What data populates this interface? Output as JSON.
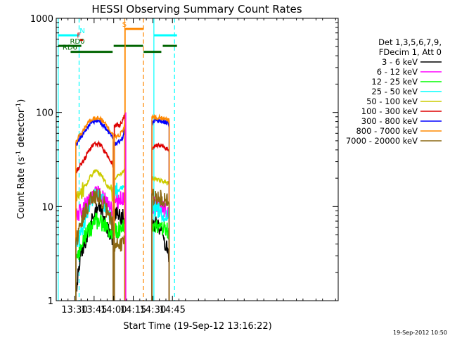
{
  "chart_data": {
    "type": "line",
    "title": "HESSI Observing Summary Count Rates",
    "xlabel": "Start Time (19-Sep-12 13:16:22)",
    "ylabel": "Count Rate (s⁻¹ detector⁻¹)",
    "ylabel_parts": [
      "Count Rate (s",
      "-1",
      " detector",
      "-1",
      ")"
    ],
    "footer": "19-Sep-2012 10:50",
    "xlim_min": [
      796,
      1012
    ],
    "ylim": [
      1,
      1000
    ],
    "y_scale": "log",
    "x_ticks": [
      {
        "min": 810,
        "label": "13:30"
      },
      {
        "min": 825,
        "label": "13:45"
      },
      {
        "min": 840,
        "label": "14:00"
      },
      {
        "min": 855,
        "label": "14:15"
      },
      {
        "min": 870,
        "label": "14:30"
      },
      {
        "min": 885,
        "label": "14:45"
      }
    ],
    "y_ticks": [
      {
        "value": 1,
        "label": "1"
      },
      {
        "value": 10,
        "label": "10"
      },
      {
        "value": 100,
        "label": "100"
      },
      {
        "value": 1000,
        "label": "1000"
      }
    ],
    "legend": {
      "header": [
        "Det 1,3,5,6,7,9,",
        "FDecim 1, Att 0"
      ],
      "position": "right"
    },
    "series": [
      {
        "name": "3 - 6 keV",
        "color": "#000000",
        "segments": [
          {
            "x": [
              811,
              814,
              817,
              820,
              823,
              826,
              829,
              832,
              835,
              838,
              839.5
            ],
            "y": [
              1.2,
              2.8,
              3.5,
              5.0,
              7.0,
              8.5,
              10.5,
              8.0,
              6.0,
              5.0,
              4.5
            ]
          },
          {
            "x": [
              840.5,
              843,
              845,
              847,
              848.5
            ],
            "y": [
              8.5,
              8.5,
              7.8,
              7.8,
              7.8
            ]
          },
          {
            "x": [
              869.3,
              872,
              875,
              878,
              880,
              882.5
            ],
            "y": [
              6.0,
              6.5,
              6.0,
              5.0,
              3.8,
              3.0
            ]
          }
        ]
      },
      {
        "name": "6 - 12 keV",
        "color": "#ff00ff",
        "segments": [
          {
            "x": [
              811,
              814,
              817,
              820,
              823,
              826,
              829,
              832,
              835,
              838,
              839.5
            ],
            "y": [
              8.0,
              8.8,
              9.8,
              11.0,
              12.5,
              13.5,
              13.5,
              12.5,
              11.0,
              9.5,
              8.5
            ]
          },
          {
            "x": [
              840.5,
              843,
              845,
              847,
              848.5
            ],
            "y": [
              11.0,
              11.5,
              12.0,
              12.5,
              13.0
            ]
          },
          {
            "x": [
              869.3,
              872,
              875,
              878,
              880,
              882.5
            ],
            "y": [
              10.0,
              10.5,
              10.0,
              9.5,
              9.0,
              9.0
            ]
          }
        ]
      },
      {
        "name": "12 - 25 keV",
        "color": "#00ff00",
        "segments": [
          {
            "x": [
              811,
              814,
              817,
              820,
              823,
              826,
              829,
              832,
              835,
              838,
              839.5
            ],
            "y": [
              2.5,
              3.5,
              4.5,
              5.5,
              6.0,
              7.0,
              7.0,
              6.5,
              6.0,
              5.5,
              5.0
            ]
          },
          {
            "x": [
              840.5,
              843,
              845,
              847,
              848.5
            ],
            "y": [
              5.5,
              5.5,
              6.0,
              6.0,
              6.0
            ]
          },
          {
            "x": [
              869.3,
              872,
              875,
              878,
              880,
              882.5
            ],
            "y": [
              6.5,
              6.5,
              6.0,
              6.0,
              5.5,
              5.5
            ]
          }
        ]
      },
      {
        "name": "25 - 50 keV",
        "color": "#00ffff",
        "segments": [
          {
            "x": [
              811,
              814,
              817,
              820,
              823,
              826,
              829,
              832,
              835,
              838,
              839.5
            ],
            "y": [
              3.5,
              4.5,
              6.5,
              9.0,
              11.5,
              13.5,
              13.0,
              11.0,
              9.0,
              7.5,
              6.5
            ]
          },
          {
            "x": [
              840.5,
              843,
              845,
              847,
              848.5
            ],
            "y": [
              14.5,
              15.0,
              15.5,
              16.0,
              17.0
            ]
          },
          {
            "x": [
              869.3,
              872,
              875,
              878,
              880,
              882.5
            ],
            "y": [
              10.0,
              9.5,
              9.0,
              8.5,
              8.0,
              8.0
            ]
          }
        ]
      },
      {
        "name": "50 - 100 keV",
        "color": "#cccc00",
        "segments": [
          {
            "x": [
              811,
              814,
              817,
              820,
              823,
              826,
              829,
              832,
              835,
              838,
              839.5
            ],
            "y": [
              12.0,
              13.5,
              15.5,
              18.5,
              21.5,
              24.0,
              23.0,
              20.0,
              17.0,
              14.5,
              13.0
            ]
          },
          {
            "x": [
              840.5,
              843,
              845,
              847,
              848.5
            ],
            "y": [
              20.0,
              21.0,
              22.0,
              23.0,
              24.0
            ]
          },
          {
            "x": [
              869.3,
              872,
              875,
              878,
              880,
              882.5
            ],
            "y": [
              20.0,
              19.5,
              19.0,
              18.5,
              18.0,
              17.5
            ]
          }
        ]
      },
      {
        "name": "100 - 300 keV",
        "color": "#dd0000",
        "segments": [
          {
            "x": [
              811,
              814,
              817,
              820,
              823,
              826,
              829,
              832,
              835,
              838,
              839.5
            ],
            "y": [
              23.0,
              27.0,
              31.0,
              37.0,
              43.0,
              47.0,
              46.0,
              41.0,
              35.0,
              30.0,
              28.0
            ]
          },
          {
            "x": [
              840.5,
              843,
              845,
              847,
              848.5
            ],
            "y": [
              72.0,
              73.0,
              74.0,
              82.0,
              97.0
            ]
          },
          {
            "x": [
              869.3,
              872,
              875,
              878,
              880,
              882.5
            ],
            "y": [
              42.0,
              44.0,
              45.0,
              44.0,
              42.0,
              40.0
            ]
          }
        ]
      },
      {
        "name": "300 - 800 keV",
        "color": "#0000ff",
        "segments": [
          {
            "x": [
              811,
              814,
              817,
              820,
              823,
              826,
              829,
              832,
              835,
              838,
              839.5
            ],
            "y": [
              45.0,
              52.0,
              61.0,
              71.0,
              79.0,
              82.0,
              80.0,
              73.0,
              65.0,
              58.0,
              55.0
            ]
          },
          {
            "x": [
              840.5,
              843,
              845,
              847,
              848.5
            ],
            "y": [
              47.0,
              48.0,
              50.0,
              55.0,
              70.0
            ]
          },
          {
            "x": [
              869.3,
              872,
              875,
              878,
              880,
              882.5
            ],
            "y": [
              80.0,
              82.0,
              81.0,
              80.0,
              78.0,
              75.0
            ]
          }
        ]
      },
      {
        "name": "800 - 7000 keV",
        "color": "#ff8800",
        "segments": [
          {
            "x": [
              811,
              814,
              817,
              820,
              823,
              826,
              829,
              832,
              835,
              838,
              839.5
            ],
            "y": [
              49.0,
              56.0,
              65.0,
              75.0,
              84.0,
              88.0,
              87.0,
              80.0,
              71.0,
              63.0,
              60.0
            ]
          },
          {
            "x": [
              840.5,
              843,
              845,
              847,
              848.5
            ],
            "y": [
              55.0,
              57.0,
              59.0,
              63.0,
              80.0
            ]
          },
          {
            "x": [
              869.3,
              872,
              875,
              878,
              880,
              882.5
            ],
            "y": [
              87.0,
              89.0,
              88.0,
              87.0,
              85.0,
              82.0
            ]
          }
        ]
      },
      {
        "name": "7000 - 20000 keV",
        "color": "#8b6914",
        "segments": [
          {
            "x": [
              811,
              814,
              817,
              820,
              823,
              826,
              829,
              832,
              835,
              838,
              839.5
            ],
            "y": [
              4.0,
              6.0,
              8.0,
              10.0,
              12.0,
              13.0,
              12.5,
              11.0,
              9.0,
              7.0,
              6.0
            ]
          },
          {
            "x": [
              840.5,
              843,
              845,
              847,
              848.5
            ],
            "y": [
              4.0,
              4.0,
              4.0,
              4.0,
              4.2
            ]
          },
          {
            "x": [
              869.3,
              872,
              875,
              878,
              880,
              882.5
            ],
            "y": [
              13.0,
              13.0,
              12.5,
              12.0,
              11.5,
              11.0
            ]
          }
        ]
      }
    ],
    "spikes": [
      {
        "color": "#ff8800",
        "x": 848.8,
        "y": [
          1,
          780
        ]
      },
      {
        "color": "#ff00ff",
        "x": 849.3,
        "y": [
          1,
          100
        ]
      }
    ],
    "vlines": [
      {
        "x": 797.5,
        "color": "#00ffff",
        "style": "solid"
      },
      {
        "x": 813.5,
        "color": "#00ffff",
        "style": "dashed"
      },
      {
        "x": 848.5,
        "color": "#ff8800",
        "style": "solid"
      },
      {
        "x": 862.8,
        "color": "#ff8800",
        "style": "dashed"
      },
      {
        "x": 870.8,
        "color": "#00ffff",
        "style": "solid"
      },
      {
        "x": 886.6,
        "color": "#00ffff",
        "style": "dashed"
      }
    ],
    "flags": [
      {
        "label": "N",
        "color": "#00ffff",
        "segments": [
          [
            797.5,
            813.5
          ],
          [
            871,
            888.5
          ]
        ],
        "y": 660,
        "label_x": 814
      },
      {
        "label": "F",
        "color": "#ff0000",
        "segments": [
          [
            814,
            816.5
          ]
        ],
        "y": 590,
        "label_x": 811.8
      },
      {
        "label": "RD0",
        "color": "#006400",
        "segments": [
          [
            797.5,
            815.2
          ],
          [
            840,
            862.5
          ],
          [
            877.6,
            888.5
          ]
        ],
        "y": 510,
        "label_x": 806.5
      },
      {
        "label": "RD6",
        "color": "#006400",
        "segments": [
          [
            807,
            839.2
          ],
          [
            862.9,
            876.5
          ]
        ],
        "y": 440,
        "label_x": 800.8
      },
      {
        "label": "S",
        "color": "#ff8800",
        "segments": [
          [
            848.8,
            862.8
          ]
        ],
        "y": 770,
        "label_x": 846.5
      }
    ]
  }
}
